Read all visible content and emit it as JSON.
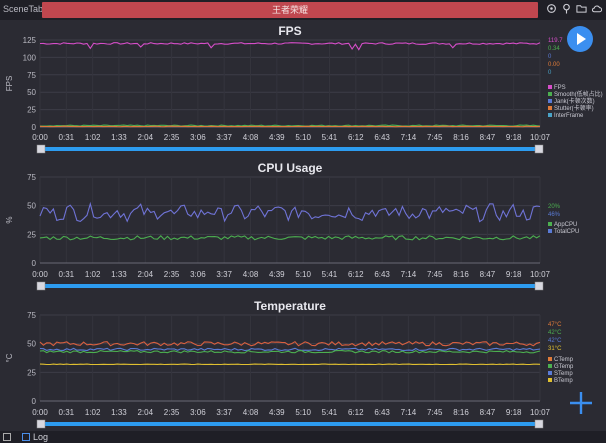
{
  "app": {
    "name": "SceneTab",
    "game": "王者荣耀"
  },
  "toolbar_icons": [
    "location-icon",
    "pin-icon",
    "folder-icon",
    "cloud-icon"
  ],
  "colors": {
    "accent": "#3b8ff0",
    "game_bar": "#c0474f",
    "slider": "#2d9cf0"
  },
  "bottom": {
    "log_label": "Log"
  },
  "x_ticks": [
    "0:00",
    "0:31",
    "1:02",
    "1:33",
    "2:04",
    "2:35",
    "3:06",
    "3:37",
    "4:08",
    "4:39",
    "5:10",
    "5:41",
    "6:12",
    "6:43",
    "7:14",
    "7:45",
    "8:16",
    "8:47",
    "9:18",
    "10:07"
  ],
  "chart_data": [
    {
      "type": "line",
      "title": "FPS",
      "ylabel": "FPS",
      "ylim": [
        0,
        125
      ],
      "yticks": [
        0,
        25,
        50,
        75,
        100,
        125
      ],
      "current_values": [
        {
          "text": "119.7",
          "color": "#d64ec9"
        },
        {
          "text": "0.34",
          "color": "#4caf50"
        },
        {
          "text": "0",
          "color": "#5a7bd6"
        },
        {
          "text": "0.00",
          "color": "#e07b39"
        },
        {
          "text": "0",
          "color": "#4aa3c7"
        }
      ],
      "legend": [
        {
          "name": "FPS",
          "color": "#d64ec9"
        },
        {
          "name": "Smooth(低帧占比)",
          "color": "#4caf50"
        },
        {
          "name": "Jank(卡顿次数)",
          "color": "#5a7bd6"
        },
        {
          "name": "Stutter(卡顿率)",
          "color": "#e07b39"
        },
        {
          "name": "InterFrame",
          "color": "#4aa3c7"
        }
      ],
      "series": [
        {
          "name": "FPS",
          "color": "#d64ec9",
          "base": 120,
          "amp": 1.2,
          "dips": [
            [
              10,
              113
            ],
            [
              20,
              115
            ],
            [
              34,
              114
            ],
            [
              62,
              112
            ],
            [
              63,
              111
            ],
            [
              82,
              114
            ]
          ]
        },
        {
          "name": "Smooth(低帧占比)",
          "color": "#4caf50",
          "base": 2,
          "amp": 0.8,
          "dips": []
        },
        {
          "name": "Stutter(卡顿率)",
          "color": "#e07b39",
          "base": 0.8,
          "amp": 0.3,
          "dips": []
        }
      ]
    },
    {
      "type": "line",
      "title": "CPU Usage",
      "ylabel": "%",
      "ylim": [
        0,
        75
      ],
      "yticks": [
        0,
        25,
        50,
        75
      ],
      "current_values": [
        {
          "text": "20%",
          "color": "#4caf50"
        },
        {
          "text": "46%",
          "color": "#5a7bd6"
        }
      ],
      "legend": [
        {
          "name": "AppCPU",
          "color": "#4caf50"
        },
        {
          "name": "TotalCPU",
          "color": "#5a7bd6"
        }
      ],
      "series": [
        {
          "name": "TotalCPU",
          "color": "#6f73d6",
          "base": 44,
          "amp": 6,
          "dips": []
        },
        {
          "name": "AppCPU",
          "color": "#4caf50",
          "base": 22,
          "amp": 1.8,
          "dips": []
        }
      ]
    },
    {
      "type": "line",
      "title": "Temperature",
      "ylabel": "°C",
      "ylim": [
        0,
        75
      ],
      "yticks": [
        0,
        25,
        50,
        75
      ],
      "current_values": [
        {
          "text": "47°C",
          "color": "#e07b39"
        },
        {
          "text": "42°C",
          "color": "#4caf50"
        },
        {
          "text": "42°C",
          "color": "#5a7bd6"
        },
        {
          "text": "31°C",
          "color": "#e0c030"
        }
      ],
      "legend": [
        {
          "name": "CTemp",
          "color": "#e07b39"
        },
        {
          "name": "GTemp",
          "color": "#4caf50"
        },
        {
          "name": "STemp",
          "color": "#5a7bd6"
        },
        {
          "name": "BTemp",
          "color": "#e0c030"
        }
      ],
      "series": [
        {
          "name": "CTemp",
          "color": "#d9603f",
          "base": 50,
          "amp": 1.8,
          "dips": []
        },
        {
          "name": "STemp",
          "color": "#5a7bd6",
          "base": 45,
          "amp": 1.0,
          "dips": []
        },
        {
          "name": "GTemp",
          "color": "#4caf50",
          "base": 43,
          "amp": 1.0,
          "dips": []
        },
        {
          "name": "BTemp",
          "color": "#e0c030",
          "base": 32,
          "amp": 0.2,
          "dips": []
        }
      ]
    }
  ]
}
